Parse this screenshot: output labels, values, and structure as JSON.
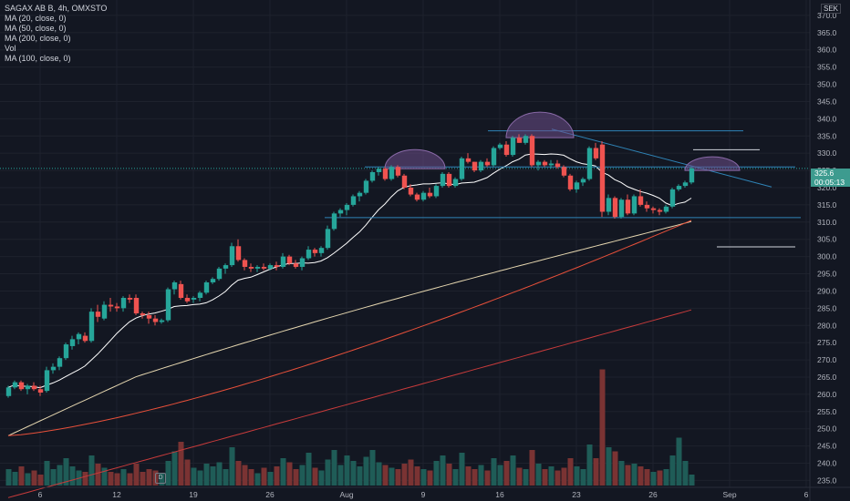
{
  "legend": {
    "title": "SAGAX AB B, 4h, OMXSTO",
    "ma20": "MA (20, close, 0)",
    "ma50": "MA (50, close, 0)",
    "ma200": "MA (200, close, 0)",
    "vol": "Vol",
    "ma100": "MA (100, close, 0)"
  },
  "currency": "SEK",
  "last_price": {
    "value": "325.6",
    "countdown": "00:05:13"
  },
  "colors": {
    "up": "#26a69a",
    "down": "#ef5350",
    "ma20": "#ffffff",
    "ma50": "#e6d7b0",
    "ma200": "#e8503a",
    "ma100": "#c83b3b",
    "trendline": "#2f84b7",
    "arc": "#6e4f8a"
  },
  "chart_data": {
    "type": "candlestick",
    "y_ticks": [
      "235.0",
      "240.0",
      "245.0",
      "250.0",
      "255.0",
      "260.0",
      "265.0",
      "270.0",
      "275.0",
      "280.0",
      "285.0",
      "290.0",
      "295.0",
      "300.0",
      "305.0",
      "310.0",
      "315.0",
      "320.0",
      "325.0",
      "330.0",
      "335.0",
      "340.0",
      "345.0",
      "350.0",
      "355.0",
      "360.0",
      "365.0",
      "370.0"
    ],
    "ylim": [
      233,
      375
    ],
    "x_ticks": [
      "6",
      "12",
      "19",
      "26",
      "Aug",
      "9",
      "16",
      "23",
      "26",
      "Sep",
      "6"
    ],
    "x_tick_bars": [
      5,
      17,
      29,
      41,
      53,
      65,
      77,
      89,
      101,
      113,
      125
    ],
    "n_bars": 130,
    "candles": [
      [
        0,
        259.5,
        262.5,
        259,
        262
      ],
      [
        1,
        262,
        264,
        261.5,
        263.5
      ],
      [
        2,
        263.5,
        264,
        261,
        261.5
      ],
      [
        3,
        261.5,
        263,
        260,
        262.5
      ],
      [
        4,
        262.5,
        263.5,
        261,
        261.5
      ],
      [
        5,
        261.5,
        262.5,
        259.5,
        260.5
      ],
      [
        6,
        261,
        268,
        260.5,
        267
      ],
      [
        7,
        267,
        269,
        266,
        268
      ],
      [
        8,
        268,
        271,
        267,
        270.5
      ],
      [
        9,
        270.5,
        275,
        270,
        274.5
      ],
      [
        10,
        274,
        277,
        273,
        276
      ],
      [
        11,
        276,
        278,
        274.5,
        277.5
      ],
      [
        12,
        277,
        278,
        275,
        275.5
      ],
      [
        13,
        275.5,
        285,
        275,
        284
      ],
      [
        14,
        284,
        286,
        281,
        282.5
      ],
      [
        15,
        282,
        287,
        281.5,
        286
      ],
      [
        16,
        286,
        288,
        284,
        285.5
      ],
      [
        17,
        285.5,
        286.5,
        284,
        285
      ],
      [
        18,
        285,
        288.5,
        284,
        288
      ],
      [
        19,
        288,
        289,
        286.5,
        287.5
      ],
      [
        20,
        288,
        289,
        283,
        283.5
      ],
      [
        21,
        283.5,
        284,
        282,
        283
      ],
      [
        22,
        283,
        284,
        280.5,
        282
      ],
      [
        23,
        282,
        283,
        280,
        281
      ],
      [
        24,
        281,
        282,
        280.5,
        281.5
      ],
      [
        25,
        281.5,
        291,
        281,
        290.5
      ],
      [
        26,
        290.5,
        293,
        289,
        292.5
      ],
      [
        27,
        292,
        293,
        287.5,
        288
      ],
      [
        28,
        288,
        289,
        286.5,
        287
      ],
      [
        29,
        287.5,
        288.5,
        286.5,
        288
      ],
      [
        30,
        288,
        290,
        287,
        289.5
      ],
      [
        31,
        289.5,
        293,
        289,
        292.5
      ],
      [
        32,
        292.5,
        294,
        292,
        293.5
      ],
      [
        33,
        293.5,
        297,
        293,
        296.5
      ],
      [
        34,
        296.5,
        298,
        295,
        297.5
      ],
      [
        35,
        297.5,
        304,
        297,
        303
      ],
      [
        36,
        303,
        305,
        298.5,
        299
      ],
      [
        37,
        299,
        299.5,
        296,
        297
      ],
      [
        38,
        297,
        298,
        295.5,
        296.5
      ],
      [
        39,
        296.5,
        297.5,
        295.5,
        297
      ],
      [
        40,
        297,
        298,
        296,
        296.5
      ],
      [
        41,
        296.5,
        298,
        296,
        297.5
      ],
      [
        42,
        297.5,
        298.5,
        296,
        297
      ],
      [
        43,
        297,
        301,
        296.5,
        300
      ],
      [
        44,
        300,
        300.5,
        297.5,
        298
      ],
      [
        45,
        298,
        299,
        296.5,
        297
      ],
      [
        46,
        297,
        300,
        296,
        299.5
      ],
      [
        47,
        299.5,
        303,
        299,
        302
      ],
      [
        48,
        302,
        302.5,
        300,
        301
      ],
      [
        49,
        301,
        303,
        300,
        302.5
      ],
      [
        50,
        302.5,
        309,
        302,
        308
      ],
      [
        51,
        308,
        313,
        307.5,
        312.5
      ],
      [
        52,
        312.5,
        314,
        311.5,
        313.5
      ],
      [
        53,
        313.5,
        315.5,
        312,
        315
      ],
      [
        54,
        315,
        318,
        314.5,
        317.5
      ],
      [
        55,
        317.5,
        319,
        316,
        318.5
      ],
      [
        56,
        318.5,
        322.5,
        318,
        322
      ],
      [
        57,
        322,
        325,
        321.5,
        324.5
      ],
      [
        58,
        324.5,
        326,
        323.5,
        325.5
      ],
      [
        59,
        325.5,
        326,
        322,
        322.5
      ],
      [
        60,
        322.5,
        326.5,
        322,
        326
      ],
      [
        61,
        326,
        326.5,
        323,
        323.5
      ],
      [
        62,
        323.5,
        324,
        319.5,
        320
      ],
      [
        63,
        320,
        321,
        317.5,
        318
      ],
      [
        64,
        318,
        318.5,
        316,
        316.5
      ],
      [
        65,
        316.5,
        319,
        316,
        318.5
      ],
      [
        66,
        318.5,
        320,
        317,
        317.5
      ],
      [
        67,
        317.5,
        321,
        317,
        320.5
      ],
      [
        68,
        320.5,
        324.5,
        320,
        324
      ],
      [
        69,
        324,
        324.5,
        320,
        320.5
      ],
      [
        70,
        320.5,
        323,
        320,
        322.5
      ],
      [
        71,
        322.5,
        329,
        322,
        328.5
      ],
      [
        72,
        328.5,
        330,
        327,
        327.5
      ],
      [
        73,
        327.5,
        327.5,
        324.5,
        325
      ],
      [
        74,
        325,
        328,
        324.5,
        327.5
      ],
      [
        75,
        327.5,
        328.5,
        326,
        326.5
      ],
      [
        76,
        326.5,
        332,
        326,
        331.5
      ],
      [
        77,
        331.5,
        333,
        331,
        332.5
      ],
      [
        78,
        332.5,
        333.5,
        329,
        329.5
      ],
      [
        79,
        329.5,
        335,
        329,
        334.5
      ],
      [
        80,
        334.5,
        335.5,
        333,
        333
      ],
      [
        81,
        333,
        335.5,
        332.5,
        335
      ],
      [
        82,
        335,
        335.5,
        326,
        326.5
      ],
      [
        83,
        326.5,
        328,
        325,
        327.5
      ],
      [
        84,
        327.5,
        328,
        326,
        326.5
      ],
      [
        85,
        326.5,
        328,
        325.5,
        327
      ],
      [
        86,
        327,
        328,
        325.5,
        326
      ],
      [
        87,
        326,
        326.5,
        323,
        323.5
      ],
      [
        88,
        323.5,
        324,
        319,
        319.5
      ],
      [
        89,
        319.5,
        322,
        318.5,
        321.5
      ],
      [
        90,
        321.5,
        323,
        320.5,
        322.5
      ],
      [
        91,
        322.5,
        332,
        322,
        331.5
      ],
      [
        92,
        331.5,
        333,
        328,
        328.5
      ],
      [
        93,
        332.5,
        333.5,
        311.5,
        313
      ],
      [
        94,
        313,
        318,
        312,
        317
      ],
      [
        95,
        317,
        317.5,
        311,
        311.5
      ],
      [
        96,
        311.5,
        317,
        311,
        316.5
      ],
      [
        97,
        316.5,
        318,
        312,
        312.5
      ],
      [
        98,
        312.5,
        318,
        312,
        317.5
      ],
      [
        99,
        317.5,
        319.5,
        314.5,
        315
      ],
      [
        100,
        315,
        316,
        313,
        314
      ],
      [
        101,
        314,
        314.5,
        312.5,
        313.5
      ],
      [
        102,
        313.5,
        314,
        312,
        313
      ],
      [
        103,
        313,
        315,
        312.5,
        314.5
      ],
      [
        104,
        314.5,
        320,
        314,
        319.5
      ],
      [
        105,
        319.5,
        321,
        319,
        320.5
      ],
      [
        106,
        320.5,
        322,
        320,
        321.5
      ],
      [
        107,
        321.5,
        326,
        321,
        325.6
      ]
    ],
    "volume": [
      [
        0,
        12,
        "u"
      ],
      [
        1,
        10,
        "u"
      ],
      [
        2,
        14,
        "d"
      ],
      [
        3,
        9,
        "u"
      ],
      [
        4,
        11,
        "d"
      ],
      [
        5,
        8,
        "d"
      ],
      [
        6,
        18,
        "u"
      ],
      [
        7,
        12,
        "u"
      ],
      [
        8,
        15,
        "u"
      ],
      [
        9,
        20,
        "u"
      ],
      [
        10,
        14,
        "u"
      ],
      [
        11,
        11,
        "u"
      ],
      [
        12,
        10,
        "d"
      ],
      [
        13,
        22,
        "u"
      ],
      [
        14,
        16,
        "d"
      ],
      [
        15,
        13,
        "u"
      ],
      [
        16,
        10,
        "d"
      ],
      [
        17,
        9,
        "d"
      ],
      [
        18,
        12,
        "u"
      ],
      [
        19,
        9,
        "d"
      ],
      [
        20,
        16,
        "d"
      ],
      [
        21,
        10,
        "d"
      ],
      [
        22,
        12,
        "d"
      ],
      [
        23,
        11,
        "d"
      ],
      [
        24,
        9,
        "u"
      ],
      [
        25,
        18,
        "u"
      ],
      [
        26,
        25,
        "u"
      ],
      [
        27,
        32,
        "d"
      ],
      [
        28,
        19,
        "d"
      ],
      [
        29,
        13,
        "u"
      ],
      [
        30,
        11,
        "u"
      ],
      [
        31,
        16,
        "u"
      ],
      [
        32,
        14,
        "u"
      ],
      [
        33,
        17,
        "u"
      ],
      [
        34,
        12,
        "u"
      ],
      [
        35,
        28,
        "u"
      ],
      [
        36,
        18,
        "d"
      ],
      [
        37,
        15,
        "d"
      ],
      [
        38,
        12,
        "d"
      ],
      [
        39,
        9,
        "u"
      ],
      [
        40,
        13,
        "d"
      ],
      [
        41,
        10,
        "u"
      ],
      [
        42,
        14,
        "d"
      ],
      [
        43,
        20,
        "u"
      ],
      [
        44,
        17,
        "d"
      ],
      [
        45,
        12,
        "d"
      ],
      [
        46,
        15,
        "u"
      ],
      [
        47,
        24,
        "u"
      ],
      [
        48,
        13,
        "d"
      ],
      [
        49,
        11,
        "u"
      ],
      [
        50,
        19,
        "u"
      ],
      [
        51,
        26,
        "u"
      ],
      [
        52,
        15,
        "u"
      ],
      [
        53,
        22,
        "u"
      ],
      [
        54,
        18,
        "u"
      ],
      [
        55,
        14,
        "u"
      ],
      [
        56,
        21,
        "u"
      ],
      [
        57,
        26,
        "u"
      ],
      [
        58,
        17,
        "u"
      ],
      [
        59,
        15,
        "d"
      ],
      [
        60,
        13,
        "u"
      ],
      [
        61,
        12,
        "d"
      ],
      [
        62,
        16,
        "d"
      ],
      [
        63,
        19,
        "d"
      ],
      [
        64,
        14,
        "d"
      ],
      [
        65,
        12,
        "u"
      ],
      [
        66,
        11,
        "d"
      ],
      [
        67,
        18,
        "u"
      ],
      [
        68,
        22,
        "u"
      ],
      [
        69,
        16,
        "d"
      ],
      [
        70,
        12,
        "u"
      ],
      [
        71,
        24,
        "u"
      ],
      [
        72,
        14,
        "d"
      ],
      [
        73,
        12,
        "d"
      ],
      [
        74,
        15,
        "u"
      ],
      [
        75,
        11,
        "d"
      ],
      [
        76,
        20,
        "u"
      ],
      [
        77,
        15,
        "u"
      ],
      [
        78,
        18,
        "d"
      ],
      [
        79,
        22,
        "u"
      ],
      [
        80,
        13,
        "d"
      ],
      [
        81,
        12,
        "u"
      ],
      [
        82,
        26,
        "d"
      ],
      [
        83,
        16,
        "u"
      ],
      [
        84,
        12,
        "d"
      ],
      [
        85,
        14,
        "u"
      ],
      [
        86,
        11,
        "d"
      ],
      [
        87,
        13,
        "d"
      ],
      [
        88,
        20,
        "d"
      ],
      [
        89,
        14,
        "u"
      ],
      [
        90,
        12,
        "u"
      ],
      [
        91,
        30,
        "u"
      ],
      [
        92,
        20,
        "d"
      ],
      [
        93,
        85,
        "d"
      ],
      [
        94,
        28,
        "u"
      ],
      [
        95,
        25,
        "d"
      ],
      [
        96,
        18,
        "u"
      ],
      [
        97,
        15,
        "d"
      ],
      [
        98,
        16,
        "u"
      ],
      [
        99,
        14,
        "d"
      ],
      [
        100,
        12,
        "d"
      ],
      [
        101,
        10,
        "u"
      ],
      [
        102,
        11,
        "d"
      ],
      [
        103,
        12,
        "u"
      ],
      [
        104,
        22,
        "u"
      ],
      [
        105,
        35,
        "u"
      ],
      [
        106,
        18,
        "u"
      ],
      [
        107,
        8,
        "u"
      ]
    ]
  }
}
